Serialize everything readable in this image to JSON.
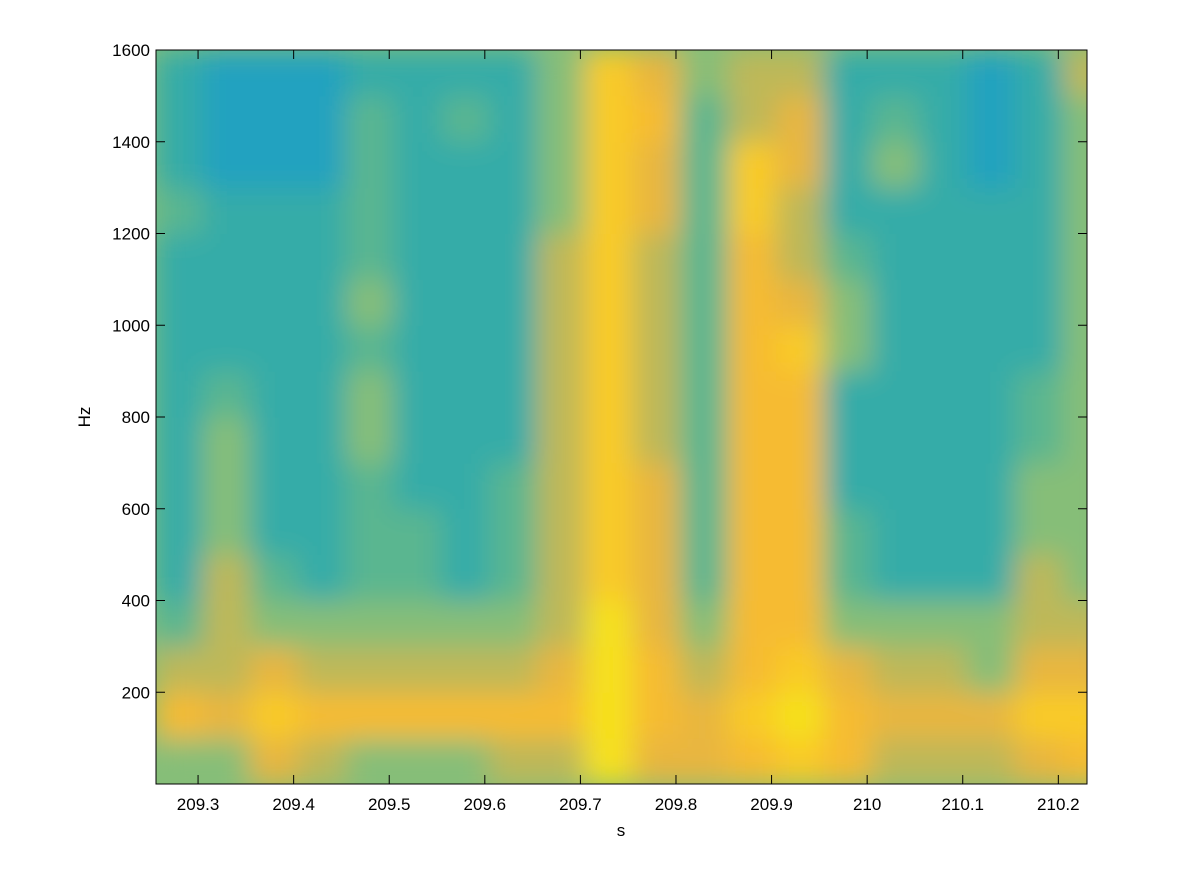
{
  "chart_data": {
    "type": "heatmap",
    "xlabel": "s",
    "ylabel": "Hz",
    "x": [
      209.28,
      209.33,
      209.38,
      209.43,
      209.48,
      209.53,
      209.58,
      209.63,
      209.68,
      209.73,
      209.78,
      209.83,
      209.88,
      209.93,
      209.98,
      210.03,
      210.08,
      210.13,
      210.18,
      210.23
    ],
    "y": [
      50,
      150,
      250,
      350,
      450,
      550,
      650,
      750,
      850,
      950,
      1050,
      1150,
      1250,
      1350,
      1450,
      1550
    ],
    "z": [
      [
        5,
        5,
        7,
        6,
        5,
        5,
        5,
        6,
        6,
        10,
        7,
        7,
        8,
        9,
        8,
        6,
        6,
        6,
        7,
        8
      ],
      [
        8,
        7,
        9,
        8,
        8,
        8,
        8,
        8,
        8,
        10,
        8,
        7,
        9,
        10,
        8,
        7,
        7,
        7,
        9,
        9
      ],
      [
        6,
        6,
        7,
        6,
        6,
        6,
        6,
        6,
        7,
        10,
        8,
        6,
        8,
        9,
        7,
        6,
        6,
        5,
        7,
        7
      ],
      [
        4,
        6,
        5,
        5,
        5,
        5,
        5,
        5,
        6,
        10,
        7,
        5,
        8,
        8,
        5,
        5,
        5,
        5,
        6,
        6
      ],
      [
        3,
        6,
        4,
        3,
        4,
        4,
        3,
        4,
        6,
        9,
        7,
        4,
        8,
        8,
        4,
        3,
        3,
        3,
        6,
        5
      ],
      [
        3,
        5,
        3,
        3,
        4,
        4,
        3,
        4,
        6,
        9,
        7,
        4,
        8,
        8,
        4,
        3,
        3,
        3,
        5,
        5
      ],
      [
        3,
        5,
        3,
        3,
        4,
        3,
        3,
        4,
        6,
        9,
        7,
        4,
        8,
        8,
        3,
        3,
        3,
        3,
        5,
        5
      ],
      [
        3,
        5,
        3,
        3,
        5,
        3,
        3,
        3,
        6,
        9,
        6,
        4,
        8,
        8,
        3,
        3,
        3,
        3,
        4,
        5
      ],
      [
        3,
        4,
        3,
        3,
        5,
        3,
        3,
        3,
        6,
        9,
        6,
        4,
        8,
        8,
        3,
        3,
        3,
        3,
        4,
        5
      ],
      [
        3,
        3,
        3,
        3,
        4,
        3,
        3,
        3,
        6,
        9,
        6,
        4,
        8,
        9,
        5,
        3,
        3,
        3,
        3,
        5
      ],
      [
        3,
        3,
        3,
        3,
        5,
        3,
        3,
        3,
        6,
        9,
        6,
        4,
        8,
        7,
        5,
        3,
        3,
        3,
        3,
        5
      ],
      [
        3,
        3,
        3,
        3,
        4,
        3,
        3,
        3,
        6,
        9,
        6,
        4,
        8,
        6,
        4,
        3,
        3,
        3,
        3,
        5
      ],
      [
        4,
        3,
        3,
        3,
        4,
        3,
        3,
        3,
        5,
        9,
        7,
        4,
        9,
        6,
        3,
        3,
        3,
        3,
        3,
        5
      ],
      [
        3,
        2,
        2,
        2,
        4,
        3,
        3,
        3,
        5,
        9,
        7,
        4,
        9,
        7,
        3,
        5,
        3,
        2,
        3,
        5
      ],
      [
        3,
        2,
        2,
        2,
        4,
        3,
        4,
        3,
        5,
        9,
        8,
        4,
        6,
        7,
        3,
        4,
        3,
        2,
        3,
        5
      ],
      [
        3,
        2,
        2,
        2,
        3,
        3,
        3,
        3,
        5,
        9,
        7,
        5,
        6,
        6,
        3,
        3,
        3,
        2,
        3,
        6
      ]
    ],
    "zlim": [
      0,
      10
    ],
    "colormap": [
      "#0a88d8",
      "#1c9ec8",
      "#3db0a0",
      "#86be78",
      "#e3b444",
      "#fbbd2c",
      "#f6e11b"
    ],
    "xlim": [
      209.256,
      210.23
    ],
    "ylim": [
      0,
      1600
    ],
    "xticks": [
      209.3,
      209.4,
      209.5,
      209.6,
      209.7,
      209.8,
      209.9,
      210,
      210.1,
      210.2
    ],
    "yticks": [
      200,
      400,
      600,
      800,
      1000,
      1200,
      1400,
      1600
    ]
  }
}
